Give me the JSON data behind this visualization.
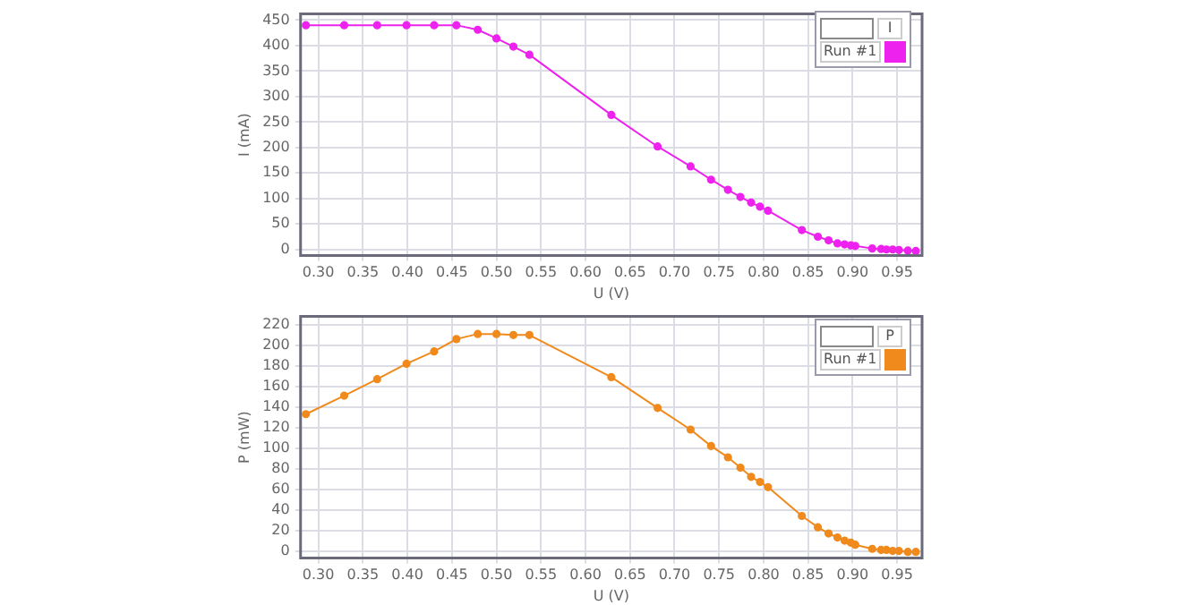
{
  "chart_data": [
    {
      "type": "line",
      "xlabel": "U (V)",
      "ylabel": "I (mA)",
      "legend_title": "I",
      "legend": "top right",
      "grid": true,
      "marker": "circle",
      "line_style": "solid",
      "xlim": [
        0.28,
        0.978
      ],
      "ylim": [
        -12,
        462
      ],
      "xticks": [
        {
          "value": 0.3,
          "label": "0.30"
        },
        {
          "value": 0.35,
          "label": "0.35"
        },
        {
          "value": 0.4,
          "label": "0.40"
        },
        {
          "value": 0.45,
          "label": "0.45"
        },
        {
          "value": 0.5,
          "label": "0.50"
        },
        {
          "value": 0.55,
          "label": "0.55"
        },
        {
          "value": 0.6,
          "label": "0.60"
        },
        {
          "value": 0.65,
          "label": "0.65"
        },
        {
          "value": 0.7,
          "label": "0.70"
        },
        {
          "value": 0.75,
          "label": "0.75"
        },
        {
          "value": 0.8,
          "label": "0.80"
        },
        {
          "value": 0.85,
          "label": "0.85"
        },
        {
          "value": 0.9,
          "label": "0.90"
        },
        {
          "value": 0.95,
          "label": "0.95"
        }
      ],
      "yticks": [
        0,
        50,
        100,
        150,
        200,
        250,
        300,
        350,
        400,
        450
      ],
      "x": [
        0.286,
        0.329,
        0.366,
        0.399,
        0.43,
        0.455,
        0.479,
        0.5,
        0.519,
        0.537,
        0.629,
        0.681,
        0.718,
        0.741,
        0.76,
        0.774,
        0.786,
        0.796,
        0.805,
        0.843,
        0.861,
        0.873,
        0.883,
        0.891,
        0.898,
        0.903,
        0.922,
        0.932,
        0.938,
        0.945,
        0.952,
        0.962,
        0.971
      ],
      "series": [
        {
          "name": "Run #1",
          "color": "#ee22ee",
          "values": [
            440,
            440,
            440,
            440,
            440,
            440,
            431,
            414,
            398,
            382,
            264,
            202,
            163,
            137,
            117,
            103,
            92,
            84,
            76,
            38,
            25,
            18,
            12,
            10,
            8,
            7,
            2,
            1,
            0,
            0,
            -1,
            -2,
            -3
          ]
        }
      ]
    },
    {
      "type": "line",
      "xlabel": "U (V)",
      "ylabel": "P (mW)",
      "legend_title": "P",
      "legend": "top right",
      "grid": true,
      "marker": "circle",
      "line_style": "solid",
      "xlim": [
        0.28,
        0.978
      ],
      "ylim": [
        -7,
        228
      ],
      "xticks": [
        {
          "value": 0.3,
          "label": "0.30"
        },
        {
          "value": 0.35,
          "label": "0.35"
        },
        {
          "value": 0.4,
          "label": "0.40"
        },
        {
          "value": 0.45,
          "label": "0.45"
        },
        {
          "value": 0.5,
          "label": "0.50"
        },
        {
          "value": 0.55,
          "label": "0.55"
        },
        {
          "value": 0.6,
          "label": "0.60"
        },
        {
          "value": 0.65,
          "label": "0.65"
        },
        {
          "value": 0.7,
          "label": "0.70"
        },
        {
          "value": 0.75,
          "label": "0.75"
        },
        {
          "value": 0.8,
          "label": "0.80"
        },
        {
          "value": 0.85,
          "label": "0.85"
        },
        {
          "value": 0.9,
          "label": "0.90"
        },
        {
          "value": 0.95,
          "label": "0.95"
        }
      ],
      "yticks": [
        0,
        20,
        40,
        60,
        80,
        100,
        120,
        140,
        160,
        180,
        200,
        220
      ],
      "x": [
        0.286,
        0.329,
        0.366,
        0.399,
        0.43,
        0.455,
        0.479,
        0.5,
        0.519,
        0.537,
        0.629,
        0.681,
        0.718,
        0.741,
        0.76,
        0.774,
        0.786,
        0.796,
        0.805,
        0.843,
        0.861,
        0.873,
        0.883,
        0.891,
        0.898,
        0.903,
        0.922,
        0.932,
        0.938,
        0.945,
        0.952,
        0.962,
        0.971
      ],
      "series": [
        {
          "name": "Run #1",
          "color": "#f08a1c",
          "values": [
            133,
            151,
            167,
            182,
            194,
            206,
            211,
            211,
            210,
            210,
            169,
            139,
            118,
            102,
            91,
            81,
            72,
            67,
            62,
            34,
            23,
            17,
            13,
            10,
            8,
            6,
            2,
            1,
            1,
            0,
            0,
            -1,
            -1
          ]
        }
      ]
    }
  ]
}
